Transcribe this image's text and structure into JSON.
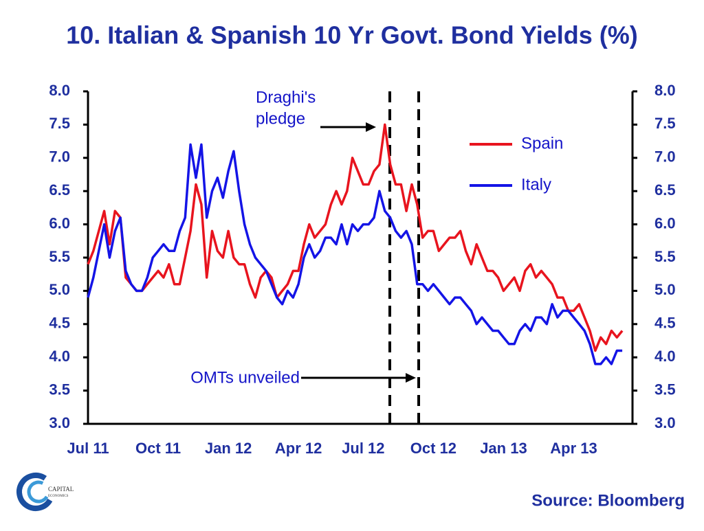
{
  "chart_data": {
    "type": "line",
    "title": "10. Italian & Spanish 10 Yr Govt. Bond Yields (%)",
    "source": "Source: Bloomberg",
    "logo": [
      "CAPITAL",
      "ECONOMICS"
    ],
    "annotations": [
      "Draghi's",
      "pledge",
      "OMTs unveiled"
    ],
    "categories": [
      "Jul 11",
      null,
      null,
      null,
      null,
      null,
      null,
      null,
      null,
      null,
      null,
      null,
      null,
      "Oct 11",
      null,
      null,
      null,
      null,
      null,
      null,
      null,
      null,
      null,
      null,
      null,
      null,
      "Jan 12",
      null,
      null,
      null,
      null,
      null,
      null,
      null,
      null,
      null,
      null,
      null,
      null,
      "Apr 12",
      null,
      null,
      null,
      null,
      null,
      null,
      null,
      null,
      null,
      null,
      null,
      "Jul 12",
      null,
      null,
      null,
      null,
      null,
      null,
      null,
      null,
      null,
      null,
      null,
      null,
      "Oct 12",
      null,
      null,
      null,
      null,
      null,
      null,
      null,
      null,
      null,
      null,
      null,
      null,
      "Jan 13",
      null,
      null,
      null,
      null,
      null,
      null,
      null,
      null,
      null,
      null,
      null,
      null,
      "Apr 13",
      null,
      null,
      null,
      null,
      null,
      null,
      null,
      null,
      null
    ],
    "series": [
      {
        "name": "Spain",
        "color": "#e8141e",
        "values": [
          5.4,
          5.6,
          5.9,
          6.2,
          5.7,
          6.2,
          6.1,
          5.2,
          5.1,
          5.0,
          5.0,
          5.1,
          5.2,
          5.3,
          5.2,
          5.4,
          5.1,
          5.1,
          5.5,
          5.9,
          6.6,
          6.3,
          5.2,
          5.9,
          5.6,
          5.5,
          5.9,
          5.5,
          5.4,
          5.4,
          5.1,
          4.9,
          5.2,
          5.3,
          5.2,
          4.9,
          5.0,
          5.1,
          5.3,
          5.3,
          5.7,
          6.0,
          5.8,
          5.9,
          6.0,
          6.3,
          6.5,
          6.3,
          6.5,
          7.0,
          6.8,
          6.6,
          6.6,
          6.8,
          6.9,
          7.5,
          6.9,
          6.6,
          6.6,
          6.2,
          6.6,
          6.3,
          5.8,
          5.9,
          5.9,
          5.6,
          5.7,
          5.8,
          5.8,
          5.9,
          5.6,
          5.4,
          5.7,
          5.5,
          5.3,
          5.3,
          5.2,
          5.0,
          5.1,
          5.2,
          5.0,
          5.3,
          5.4,
          5.2,
          5.3,
          5.2,
          5.1,
          4.9,
          4.9,
          4.7,
          4.7,
          4.8,
          4.6,
          4.4,
          4.1,
          4.3,
          4.2,
          4.4,
          4.3,
          4.4
        ]
      },
      {
        "name": "Italy",
        "color": "#1414e6",
        "values": [
          4.9,
          5.2,
          5.6,
          6.0,
          5.5,
          5.9,
          6.1,
          5.3,
          5.1,
          5.0,
          5.0,
          5.2,
          5.5,
          5.6,
          5.7,
          5.6,
          5.6,
          5.9,
          6.1,
          7.2,
          6.7,
          7.2,
          6.1,
          6.5,
          6.7,
          6.4,
          6.8,
          7.1,
          6.5,
          6.0,
          5.7,
          5.5,
          5.4,
          5.3,
          5.1,
          4.9,
          4.8,
          5.0,
          4.9,
          5.1,
          5.5,
          5.7,
          5.5,
          5.6,
          5.8,
          5.8,
          5.7,
          6.0,
          5.7,
          6.0,
          5.9,
          6.0,
          6.0,
          6.1,
          6.5,
          6.2,
          6.1,
          5.9,
          5.8,
          5.9,
          5.7,
          5.1,
          5.1,
          5.0,
          5.1,
          5.0,
          4.9,
          4.8,
          4.9,
          4.9,
          4.8,
          4.7,
          4.5,
          4.6,
          4.5,
          4.4,
          4.4,
          4.3,
          4.2,
          4.2,
          4.4,
          4.5,
          4.4,
          4.6,
          4.6,
          4.5,
          4.8,
          4.6,
          4.7,
          4.7,
          4.6,
          4.5,
          4.4,
          4.2,
          3.9,
          3.9,
          4.0,
          3.9,
          4.1,
          4.1
        ]
      }
    ],
    "ylim": [
      3,
      8
    ],
    "yticks": [
      {
        "value": 3,
        "label": "3.0"
      },
      {
        "value": 3.5,
        "label": "3.5"
      },
      {
        "value": 4,
        "label": "4.0"
      },
      {
        "value": 4.5,
        "label": "4.5"
      },
      {
        "value": 5,
        "label": "5.0"
      },
      {
        "value": 5.5,
        "label": "5.5"
      },
      {
        "value": 6,
        "label": "6.0"
      },
      {
        "value": 6.5,
        "label": "6.5"
      },
      {
        "value": 7,
        "label": "7.0"
      },
      {
        "value": 7.5,
        "label": "7.5"
      },
      {
        "value": 8,
        "label": "8.0"
      }
    ],
    "y2lim": [
      3,
      8
    ],
    "y2ticks": [
      {
        "value": 3,
        "label": "3.0"
      },
      {
        "value": 3.5,
        "label": "3.5"
      },
      {
        "value": 4,
        "label": "4.0"
      },
      {
        "value": 4.5,
        "label": "4.5"
      },
      {
        "value": 5,
        "label": "5.0"
      },
      {
        "value": 5.5,
        "label": "5.5"
      },
      {
        "value": 6,
        "label": "6.0"
      },
      {
        "value": 6.5,
        "label": "6.5"
      },
      {
        "value": 7,
        "label": "7.0"
      },
      {
        "value": 7.5,
        "label": "7.5"
      },
      {
        "value": 8,
        "label": "8.0"
      }
    ],
    "grid": false,
    "legend": "upper right"
  }
}
